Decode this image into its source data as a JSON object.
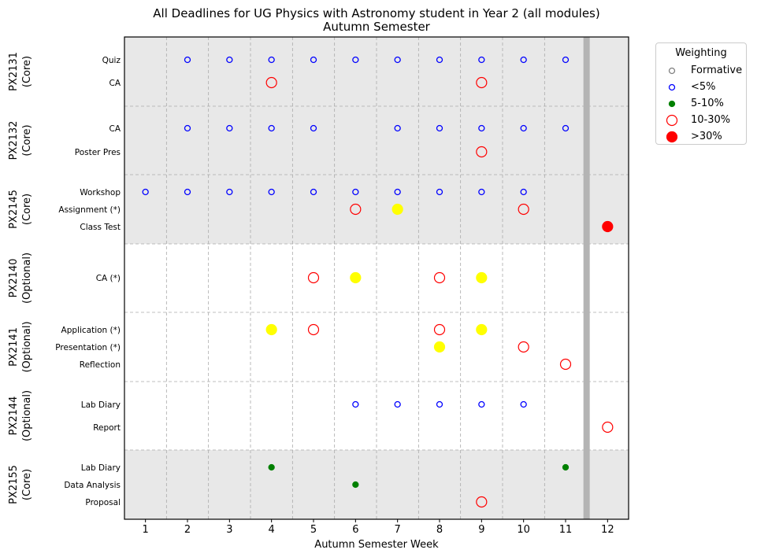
{
  "chart_data": {
    "type": "scatter",
    "title": "All Deadlines for UG Physics with Astronomy student in Year 2 (all modules)",
    "subtitle": "Autumn Semester",
    "xlabel": "Autumn Semester Week",
    "xticks": [
      1,
      2,
      3,
      4,
      5,
      6,
      7,
      8,
      9,
      10,
      11,
      12
    ],
    "xlim": [
      0.5,
      12.5
    ],
    "legend": {
      "title": "Weighting",
      "position": "outside-top-right",
      "entries": [
        {
          "label": "Formative",
          "style": "formative"
        },
        {
          "label": "<5%",
          "style": "lt5"
        },
        {
          "label": "5-10%",
          "style": "w5_10"
        },
        {
          "label": "10-30%",
          "style": "w10_30"
        },
        {
          "label": ">30%",
          "style": "gt30"
        }
      ]
    },
    "marker_styles": {
      "formative": {
        "fill": "none",
        "stroke": "#808080",
        "size": "small"
      },
      "lt5": {
        "fill": "none",
        "stroke": "#0000ff",
        "size": "small"
      },
      "w5_10": {
        "fill": "#008000",
        "stroke": "#008000",
        "size": "tiny"
      },
      "w10_30": {
        "fill": "none",
        "stroke": "#ff0000",
        "size": "large"
      },
      "gt30": {
        "fill": "#ff0000",
        "stroke": "#ff0000",
        "size": "large"
      },
      "w10_30_yellow": {
        "fill": "#ffff00",
        "stroke": "#ffff00",
        "size": "large"
      }
    },
    "reading_week_x": 11.5,
    "modules": [
      {
        "code": "PX2131",
        "kind": "(Core)",
        "shaded": true,
        "rows": [
          {
            "label": "Quiz",
            "points": [
              {
                "week": 2,
                "style": "lt5"
              },
              {
                "week": 3,
                "style": "lt5"
              },
              {
                "week": 4,
                "style": "lt5"
              },
              {
                "week": 5,
                "style": "lt5"
              },
              {
                "week": 6,
                "style": "lt5"
              },
              {
                "week": 7,
                "style": "lt5"
              },
              {
                "week": 8,
                "style": "lt5"
              },
              {
                "week": 9,
                "style": "lt5"
              },
              {
                "week": 10,
                "style": "lt5"
              },
              {
                "week": 11,
                "style": "lt5"
              }
            ]
          },
          {
            "label": "CA",
            "points": [
              {
                "week": 4,
                "style": "w10_30"
              },
              {
                "week": 9,
                "style": "w10_30"
              }
            ]
          }
        ]
      },
      {
        "code": "PX2132",
        "kind": "(Core)",
        "shaded": true,
        "rows": [
          {
            "label": "CA",
            "points": [
              {
                "week": 2,
                "style": "lt5"
              },
              {
                "week": 3,
                "style": "lt5"
              },
              {
                "week": 4,
                "style": "lt5"
              },
              {
                "week": 5,
                "style": "lt5"
              },
              {
                "week": 7,
                "style": "lt5"
              },
              {
                "week": 8,
                "style": "lt5"
              },
              {
                "week": 9,
                "style": "lt5"
              },
              {
                "week": 10,
                "style": "lt5"
              },
              {
                "week": 11,
                "style": "lt5"
              }
            ]
          },
          {
            "label": "Poster Pres",
            "points": [
              {
                "week": 9,
                "style": "w10_30"
              }
            ]
          }
        ]
      },
      {
        "code": "PX2145",
        "kind": "(Core)",
        "shaded": true,
        "rows": [
          {
            "label": "Workshop",
            "points": [
              {
                "week": 1,
                "style": "lt5"
              },
              {
                "week": 2,
                "style": "lt5"
              },
              {
                "week": 3,
                "style": "lt5"
              },
              {
                "week": 4,
                "style": "lt5"
              },
              {
                "week": 5,
                "style": "lt5"
              },
              {
                "week": 6,
                "style": "lt5"
              },
              {
                "week": 7,
                "style": "lt5"
              },
              {
                "week": 8,
                "style": "lt5"
              },
              {
                "week": 9,
                "style": "lt5"
              },
              {
                "week": 10,
                "style": "lt5"
              }
            ]
          },
          {
            "label": "Assignment (*)",
            "points": [
              {
                "week": 6,
                "style": "w10_30"
              },
              {
                "week": 7,
                "style": "w10_30_yellow"
              },
              {
                "week": 10,
                "style": "w10_30"
              }
            ]
          },
          {
            "label": "Class Test",
            "points": [
              {
                "week": 12,
                "style": "gt30"
              }
            ]
          }
        ]
      },
      {
        "code": "PX2140",
        "kind": "(Optional)",
        "shaded": false,
        "rows": [
          {
            "label": "CA (*)",
            "points": [
              {
                "week": 5,
                "style": "w10_30"
              },
              {
                "week": 6,
                "style": "w10_30_yellow"
              },
              {
                "week": 8,
                "style": "w10_30"
              },
              {
                "week": 9,
                "style": "w10_30_yellow"
              }
            ]
          }
        ]
      },
      {
        "code": "PX2141",
        "kind": "(Optional)",
        "shaded": false,
        "rows": [
          {
            "label": "Application (*)",
            "points": [
              {
                "week": 4,
                "style": "w10_30_yellow"
              },
              {
                "week": 5,
                "style": "w10_30"
              },
              {
                "week": 8,
                "style": "w10_30"
              },
              {
                "week": 9,
                "style": "w10_30_yellow"
              }
            ]
          },
          {
            "label": "Presentation (*)",
            "points": [
              {
                "week": 8,
                "style": "w10_30_yellow"
              },
              {
                "week": 10,
                "style": "w10_30"
              }
            ]
          },
          {
            "label": "Reflection",
            "points": [
              {
                "week": 11,
                "style": "w10_30"
              }
            ]
          }
        ]
      },
      {
        "code": "PX2144",
        "kind": "(Optional)",
        "shaded": false,
        "rows": [
          {
            "label": "Lab Diary",
            "points": [
              {
                "week": 6,
                "style": "lt5"
              },
              {
                "week": 7,
                "style": "lt5"
              },
              {
                "week": 8,
                "style": "lt5"
              },
              {
                "week": 9,
                "style": "lt5"
              },
              {
                "week": 10,
                "style": "lt5"
              }
            ]
          },
          {
            "label": "Report",
            "points": [
              {
                "week": 12,
                "style": "w10_30"
              }
            ]
          }
        ]
      },
      {
        "code": "PX2155",
        "kind": "(Core)",
        "shaded": true,
        "rows": [
          {
            "label": "Lab Diary",
            "points": [
              {
                "week": 4,
                "style": "w5_10"
              },
              {
                "week": 11,
                "style": "w5_10"
              }
            ]
          },
          {
            "label": "Data Analysis",
            "points": [
              {
                "week": 6,
                "style": "w5_10"
              }
            ]
          },
          {
            "label": "Proposal",
            "points": [
              {
                "week": 9,
                "style": "w10_30"
              }
            ]
          }
        ]
      }
    ]
  }
}
